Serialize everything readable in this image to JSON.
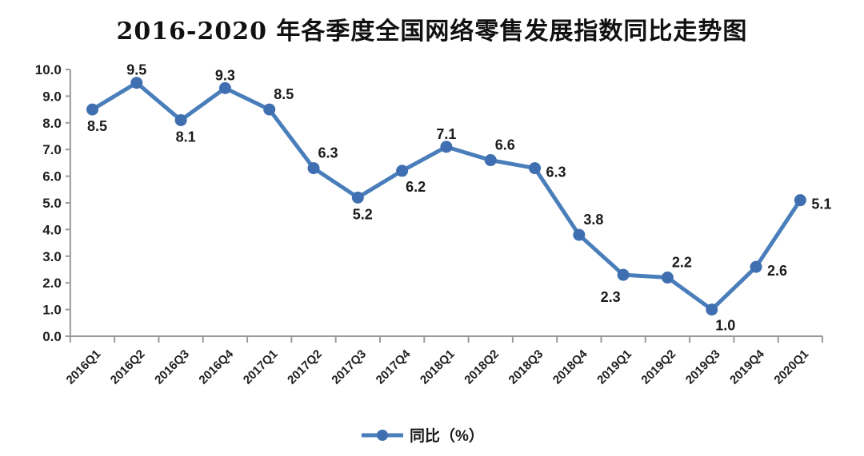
{
  "page": {
    "background": "#ffffff"
  },
  "chart_data": {
    "type": "line",
    "title": "2016-2020 年各季度全国网络零售发展指数同比走势图",
    "categories": [
      "2016Q1",
      "2016Q2",
      "2016Q3",
      "2016Q4",
      "2017Q1",
      "2017Q2",
      "2017Q3",
      "2017Q4",
      "2018Q1",
      "2018Q2",
      "2018Q3",
      "2018Q4",
      "2019Q1",
      "2019Q2",
      "2019Q3",
      "2019Q4",
      "2020Q1"
    ],
    "series": [
      {
        "name": "同比（%）",
        "values": [
          8.5,
          9.5,
          8.1,
          9.3,
          8.5,
          6.3,
          5.2,
          6.2,
          7.1,
          6.6,
          6.3,
          3.8,
          2.3,
          2.2,
          1.0,
          2.6,
          5.1
        ],
        "data_labels": [
          "8.5",
          "9.5",
          "8.1",
          "9.3",
          "8.5",
          "6.3",
          "5.2",
          "6.2",
          "7.1",
          "6.6",
          "6.3",
          "3.8",
          "2.3",
          "2.2",
          "1.0",
          "2.6",
          "5.1"
        ],
        "label_positions": [
          "below",
          "above",
          "below",
          "above",
          "above-right",
          "above-right",
          "below",
          "below-right",
          "above",
          "above-right",
          "right",
          "above-right",
          "below-left",
          "above-right",
          "below-right",
          "right",
          "right"
        ],
        "line_color": "#4A7EBB",
        "marker_color": "#3F6FB0"
      }
    ],
    "xlabel": "",
    "ylabel": "",
    "ylim": [
      0,
      10
    ],
    "ytick_labels": [
      "0.0",
      "1.0",
      "2.0",
      "3.0",
      "4.0",
      "5.0",
      "6.0",
      "7.0",
      "8.0",
      "9.0",
      "10.0"
    ],
    "grid": false,
    "legend": {
      "label": "同比（%）",
      "position": "bottom"
    },
    "axis_color": "#9a9a9a",
    "text_color": "#1f1f1f"
  }
}
